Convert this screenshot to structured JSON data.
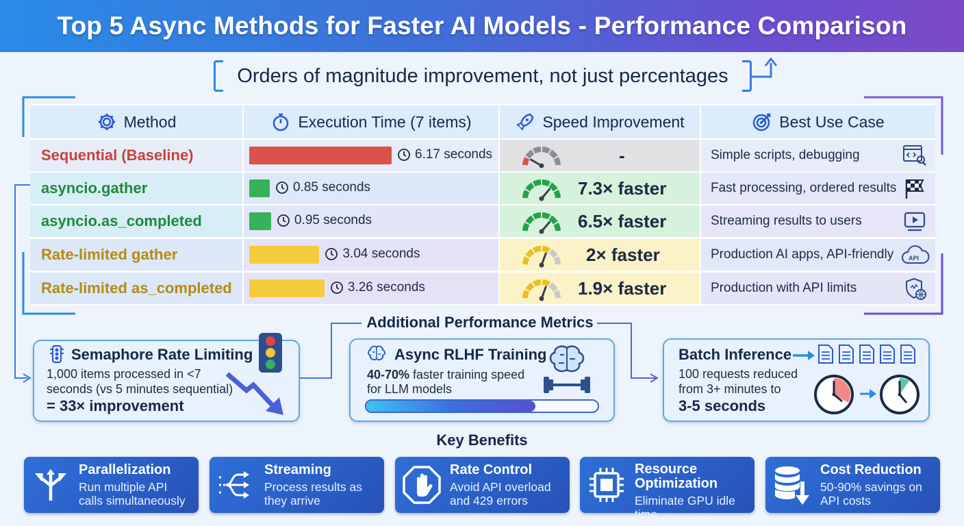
{
  "title": "Top 5 Async Methods for Faster AI Models - Performance Comparison",
  "subtitle": "Orders of magnitude improvement, not just percentages",
  "table": {
    "headers": {
      "method": "Method",
      "time": "Execution Time (7 items)",
      "speed": "Speed Improvement",
      "usecase": "Best Use Case"
    },
    "rows": [
      {
        "method": "Sequential (Baseline)",
        "time": "6.17 seconds",
        "seconds": 6.17,
        "speed": "-",
        "usecase": "Simple scripts, debugging",
        "color": "#c8423a",
        "icon": "code-window-icon"
      },
      {
        "method": "asyncio.gather",
        "time": "0.85 seconds",
        "seconds": 0.85,
        "speed": "7.3× faster",
        "usecase": "Fast processing, ordered results",
        "color": "#1f8a3a",
        "icon": "checkered-flag-icon"
      },
      {
        "method": "asyncio.as_completed",
        "time": "0.95 seconds",
        "seconds": 0.95,
        "speed": "6.5× faster",
        "usecase": "Streaming results to users",
        "color": "#1f8a3a",
        "icon": "video-play-icon"
      },
      {
        "method": "Rate-limited gather",
        "time": "3.04 seconds",
        "seconds": 3.04,
        "speed": "2× faster",
        "usecase": "Production AI apps, API-friendly",
        "color": "#b58a12",
        "icon": "api-cloud-icon"
      },
      {
        "method": "Rate-limited as_completed",
        "time": "3.26 seconds",
        "seconds": 3.26,
        "speed": "1.9× faster",
        "usecase": "Production with API limits",
        "color": "#b58a12",
        "icon": "shield-globe-icon"
      }
    ]
  },
  "metrics": {
    "heading": "Additional Performance Metrics",
    "semaphore": {
      "title": "Semaphore Rate Limiting",
      "line1": "1,000 items processed in <7",
      "line2": "seconds (vs 5 minutes sequential)",
      "result": "= 33× improvement"
    },
    "rlhf": {
      "title": "Async RLHF Training",
      "highlight": "40-70%",
      "line1": " faster training speed",
      "line2": "for LLM models",
      "progress": 0.73
    },
    "batch": {
      "title": "Batch Inference",
      "line1": "100 requests reduced",
      "line2": "from 3+ minutes to",
      "result": "3-5 seconds"
    }
  },
  "benefits": {
    "heading": "Key Benefits",
    "items": [
      {
        "title": "Parallelization",
        "line1": "Run multiple API",
        "line2": "calls simultaneously",
        "icon": "split-arrows-icon"
      },
      {
        "title": "Streaming",
        "line1": "Process results as",
        "line2": "they arrive",
        "icon": "stream-flow-icon"
      },
      {
        "title": "Rate Control",
        "line1": "Avoid API overload",
        "line2": "and 429 errors",
        "icon": "stop-hand-icon"
      },
      {
        "title": "Resource",
        "title2": "Optimization",
        "line1": "Eliminate GPU idle time",
        "line2": "",
        "icon": "chip-icon"
      },
      {
        "title": "Cost Reduction",
        "line1": "50-90% savings on",
        "line2": "API costs",
        "icon": "database-down-icon"
      }
    ]
  },
  "colors": {
    "red": "#d9534a",
    "green": "#35b25a",
    "yellow": "#f5cc3b",
    "accent": "#2a8be6"
  }
}
